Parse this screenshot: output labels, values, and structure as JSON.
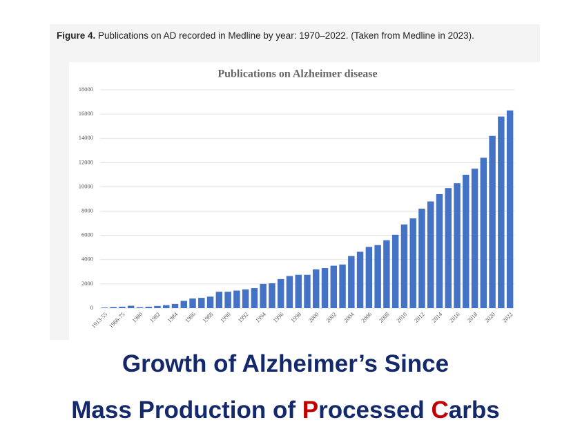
{
  "figure_caption": {
    "label": "Figure 4.",
    "text": "Publications on AD recorded in Medline by year: 1970–2022. (Taken from Medline in 2023)."
  },
  "chart_data": {
    "type": "bar",
    "title": "Publications on Alzheimer disease",
    "categories": [
      "1913-55",
      null,
      "1966-75",
      null,
      "1980",
      null,
      "1982",
      null,
      "1984",
      null,
      "1986",
      null,
      "1988",
      null,
      "1990",
      null,
      "1992",
      null,
      "1994",
      null,
      "1996",
      null,
      "1998",
      null,
      "2000",
      null,
      "2002",
      null,
      "2004",
      null,
      "2006",
      null,
      "2008",
      null,
      "2010",
      null,
      "2012",
      null,
      "2014",
      null,
      "2016",
      null,
      "2018",
      null,
      "2020",
      null,
      "2022"
    ],
    "values": [
      50,
      100,
      120,
      200,
      80,
      120,
      180,
      250,
      350,
      600,
      800,
      850,
      950,
      1350,
      1350,
      1450,
      1550,
      1650,
      2000,
      2050,
      2400,
      2650,
      2750,
      2750,
      3200,
      3300,
      3500,
      3600,
      4300,
      4650,
      5050,
      5200,
      5600,
      6050,
      6900,
      7400,
      8200,
      8800,
      9400,
      9900,
      10300,
      11000,
      11500,
      12400,
      14200,
      15800,
      16300
    ],
    "color": "#4472c4",
    "ylim": [
      0,
      18000
    ],
    "yticks": [
      0,
      2000,
      4000,
      6000,
      8000,
      10000,
      12000,
      14000,
      16000,
      18000
    ],
    "grid": true
  },
  "headline": {
    "line1": "Growth of Alzheimer’s Since",
    "line2": [
      "Mass Production of ",
      "P",
      "rocessed ",
      "C",
      "arbs"
    ]
  }
}
